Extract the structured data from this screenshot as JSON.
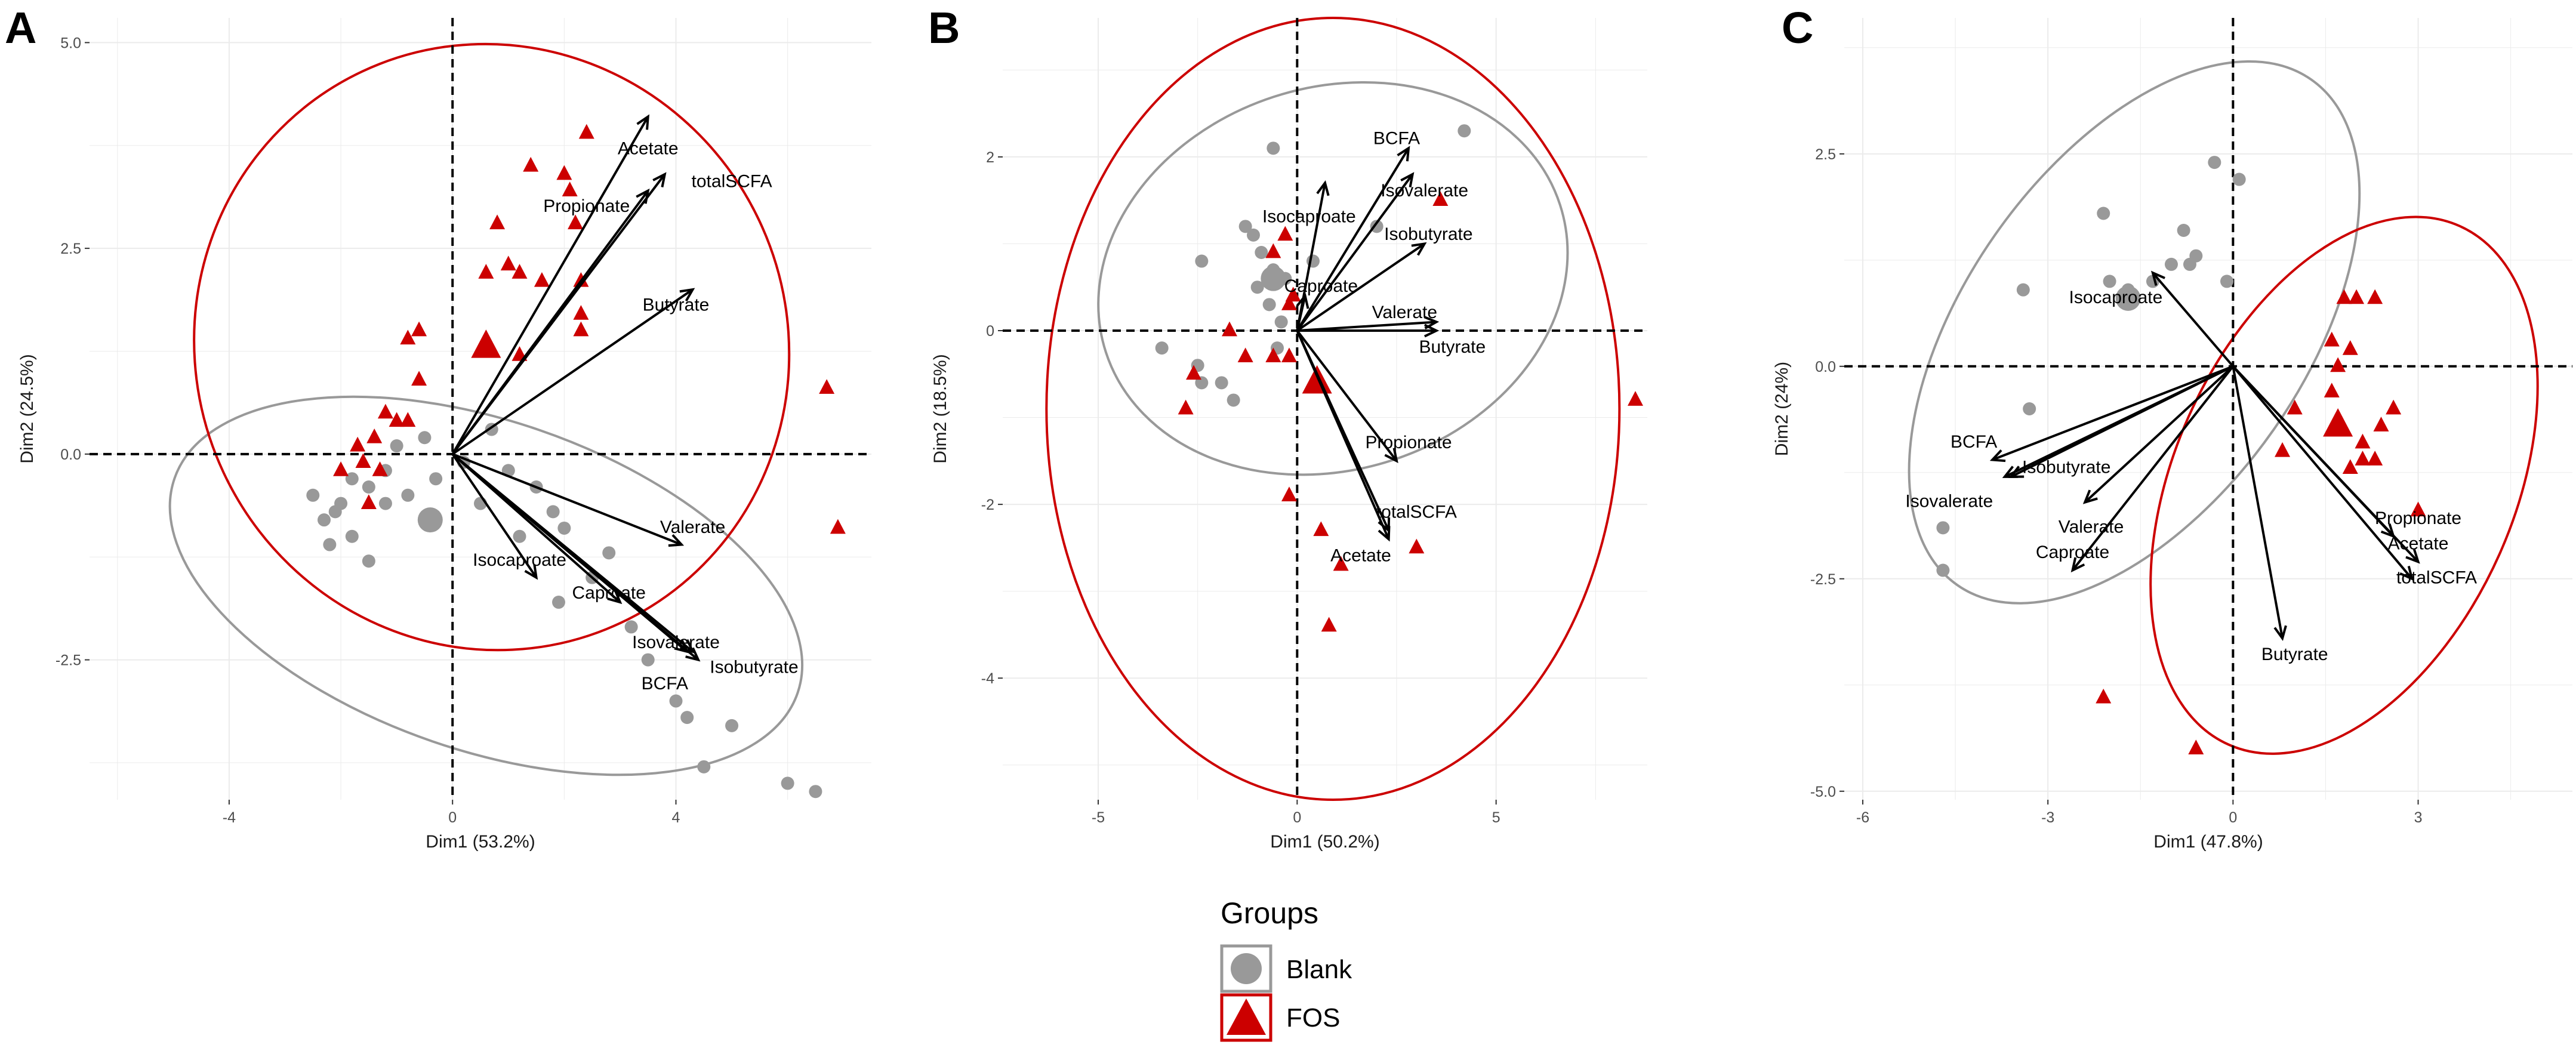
{
  "colors": {
    "blank": "#999999",
    "fos": "#cc0000",
    "grid": "#ebebeb",
    "arrow": "#000000"
  },
  "legend": {
    "title": "Groups",
    "items": [
      {
        "label": "Blank",
        "shape": "circle"
      },
      {
        "label": "FOS",
        "shape": "triangle"
      }
    ]
  },
  "chart_data": [
    {
      "type": "scatter",
      "panel": "A",
      "xlabel": "Dim1 (53.2%)",
      "ylabel": "Dim2 (24.5%)",
      "xlim": [
        -6.5,
        7.5
      ],
      "ylim": [
        -4.2,
        5.3
      ],
      "xticks": [
        -4,
        0,
        4
      ],
      "yticks": [
        -2.5,
        0.0,
        2.5,
        5.0
      ],
      "xtick_labels": [
        "-4",
        "0",
        "4"
      ],
      "ytick_labels": [
        "-2.5",
        "0.0",
        "2.5",
        "5.0"
      ],
      "ellipses": [
        {
          "group": "Blank",
          "cx": 0.6,
          "cy": -1.6,
          "rx": 5.9,
          "ry": 2.0,
          "angle": -19
        },
        {
          "group": "FOS",
          "cx": 0.7,
          "cy": 1.3,
          "rx": 5.3,
          "ry": 3.7,
          "angle": 25
        }
      ],
      "vectors": [
        {
          "name": "Acetate",
          "x": 3.5,
          "y": 4.1,
          "lx": 3.5,
          "ly": 3.7
        },
        {
          "name": "totalSCFA",
          "x": 3.8,
          "y": 3.4,
          "lx": 5.0,
          "ly": 3.3
        },
        {
          "name": "Propionate",
          "x": 3.5,
          "y": 3.2,
          "lx": 2.4,
          "ly": 3.0
        },
        {
          "name": "Butyrate",
          "x": 4.3,
          "y": 2.0,
          "lx": 4.0,
          "ly": 1.8
        },
        {
          "name": "Valerate",
          "x": 4.1,
          "y": -1.1,
          "lx": 4.3,
          "ly": -0.9
        },
        {
          "name": "Isocaproate",
          "x": 1.5,
          "y": -1.5,
          "lx": 1.2,
          "ly": -1.3
        },
        {
          "name": "Caproate",
          "x": 3.0,
          "y": -1.8,
          "lx": 2.8,
          "ly": -1.7
        },
        {
          "name": "Isovalerate",
          "x": 4.3,
          "y": -2.4,
          "lx": 4.0,
          "ly": -2.3
        },
        {
          "name": "Isobutyrate",
          "x": 4.4,
          "y": -2.5,
          "lx": 5.4,
          "ly": -2.6
        },
        {
          "name": "BCFA",
          "x": 4.2,
          "y": -2.4,
          "lx": 3.8,
          "ly": -2.8
        }
      ],
      "blank_points": [
        [
          -2.5,
          -0.5
        ],
        [
          -2.3,
          -0.8
        ],
        [
          -2.0,
          -0.6
        ],
        [
          -1.8,
          -0.3
        ],
        [
          -1.5,
          -0.4
        ],
        [
          -1.2,
          -0.2
        ],
        [
          -1.0,
          0.1
        ],
        [
          -0.8,
          -0.5
        ],
        [
          -0.5,
          0.2
        ],
        [
          -0.3,
          -0.3
        ],
        [
          0.2,
          -0.1
        ],
        [
          0.7,
          0.3
        ],
        [
          1.0,
          -0.2
        ],
        [
          1.5,
          -0.4
        ],
        [
          1.8,
          -0.7
        ],
        [
          2.0,
          -0.9
        ],
        [
          1.9,
          -1.8
        ],
        [
          2.5,
          -1.5
        ],
        [
          2.8,
          -1.2
        ],
        [
          3.2,
          -2.1
        ],
        [
          3.5,
          -2.5
        ],
        [
          4.0,
          -3.0
        ],
        [
          4.2,
          -3.2
        ],
        [
          4.5,
          -3.8
        ],
        [
          5.0,
          -3.3
        ],
        [
          6.0,
          -4.0
        ],
        [
          6.5,
          -4.1
        ],
        [
          -1.5,
          -1.3
        ],
        [
          -1.8,
          -1.0
        ],
        [
          -2.2,
          -1.1
        ],
        [
          -1.2,
          -0.6
        ],
        [
          0.5,
          -0.6
        ],
        [
          1.2,
          -1.0
        ],
        [
          -2.1,
          -0.7
        ]
      ],
      "blank_centroid": [
        -0.4,
        -0.8
      ],
      "fos_points": [
        [
          2.4,
          3.9
        ],
        [
          1.4,
          3.5
        ],
        [
          2.0,
          3.4
        ],
        [
          2.1,
          3.2
        ],
        [
          2.2,
          2.8
        ],
        [
          0.8,
          2.8
        ],
        [
          1.0,
          2.3
        ],
        [
          1.2,
          2.2
        ],
        [
          0.6,
          2.2
        ],
        [
          1.6,
          2.1
        ],
        [
          2.3,
          2.1
        ],
        [
          2.3,
          1.7
        ],
        [
          2.3,
          1.5
        ],
        [
          -0.8,
          1.4
        ],
        [
          -0.6,
          1.5
        ],
        [
          1.2,
          1.2
        ],
        [
          -0.6,
          0.9
        ],
        [
          -1.2,
          0.5
        ],
        [
          -1.0,
          0.4
        ],
        [
          -0.8,
          0.4
        ],
        [
          -1.4,
          0.2
        ],
        [
          -1.7,
          0.1
        ],
        [
          -1.6,
          -0.1
        ],
        [
          -1.3,
          -0.2
        ],
        [
          -2.0,
          -0.2
        ],
        [
          -1.5,
          -0.6
        ],
        [
          6.7,
          0.8
        ],
        [
          6.9,
          -0.9
        ]
      ],
      "fos_centroid": [
        0.6,
        1.3
      ]
    },
    {
      "type": "scatter",
      "panel": "B",
      "xlabel": "Dim1 (50.2%)",
      "ylabel": "Dim2 (18.5%)",
      "xlim": [
        -7.4,
        8.8
      ],
      "ylim": [
        -5.4,
        3.6
      ],
      "xticks": [
        -5,
        0,
        5
      ],
      "yticks": [
        -4,
        -2,
        0,
        2
      ],
      "xtick_labels": [
        "-5",
        "0",
        "5"
      ],
      "ytick_labels": [
        "-4",
        "-2",
        "0",
        "2"
      ],
      "ellipses": [
        {
          "group": "Blank",
          "cx": 0.9,
          "cy": 0.6,
          "rx": 6.0,
          "ry": 2.2,
          "angle": 18
        },
        {
          "group": "FOS",
          "cx": 0.9,
          "cy": -0.9,
          "rx": 7.2,
          "ry": 4.5,
          "angle": 0
        }
      ],
      "vectors": [
        {
          "name": "BCFA",
          "x": 2.8,
          "y": 2.1,
          "lx": 2.5,
          "ly": 2.2
        },
        {
          "name": "Isovalerate",
          "x": 2.9,
          "y": 1.8,
          "lx": 3.2,
          "ly": 1.6
        },
        {
          "name": "Isocaproate",
          "x": 0.7,
          "y": 1.7,
          "lx": 0.3,
          "ly": 1.3
        },
        {
          "name": "Isobutyrate",
          "x": 3.2,
          "y": 1.0,
          "lx": 3.3,
          "ly": 1.1
        },
        {
          "name": "Caproate",
          "x": 0.2,
          "y": 0.4,
          "lx": 0.6,
          "ly": 0.5
        },
        {
          "name": "Valerate",
          "x": 3.5,
          "y": 0.1,
          "lx": 2.7,
          "ly": 0.2
        },
        {
          "name": "Butyrate",
          "x": 3.5,
          "y": 0.0,
          "lx": 3.9,
          "ly": -0.2
        },
        {
          "name": "Propionate",
          "x": 2.5,
          "y": -1.5,
          "lx": 2.8,
          "ly": -1.3
        },
        {
          "name": "totalSCFA",
          "x": 2.3,
          "y": -2.3,
          "lx": 3.0,
          "ly": -2.1
        },
        {
          "name": "Acetate",
          "x": 2.3,
          "y": -2.4,
          "lx": 1.6,
          "ly": -2.6
        }
      ],
      "blank_points": [
        [
          -0.6,
          2.1
        ],
        [
          -2.4,
          0.8
        ],
        [
          -1.3,
          1.2
        ],
        [
          -1.1,
          1.1
        ],
        [
          -0.9,
          0.9
        ],
        [
          -0.6,
          0.7
        ],
        [
          -1.0,
          0.5
        ],
        [
          -0.7,
          0.3
        ],
        [
          -0.4,
          0.1
        ],
        [
          -3.4,
          -0.2
        ],
        [
          -2.5,
          -0.4
        ],
        [
          -2.4,
          -0.6
        ],
        [
          -1.9,
          -0.6
        ],
        [
          -1.6,
          -0.8
        ],
        [
          -0.5,
          -0.2
        ],
        [
          0.4,
          0.8
        ],
        [
          2.0,
          1.2
        ],
        [
          4.2,
          2.3
        ],
        [
          -0.3,
          0.6
        ]
      ],
      "blank_centroid": [
        -0.6,
        0.6
      ],
      "fos_points": [
        [
          -0.3,
          1.1
        ],
        [
          -0.6,
          0.9
        ],
        [
          -0.1,
          0.4
        ],
        [
          -0.2,
          0.3
        ],
        [
          -1.7,
          0.0
        ],
        [
          -0.2,
          -0.3
        ],
        [
          -0.6,
          -0.3
        ],
        [
          -1.3,
          -0.3
        ],
        [
          -2.6,
          -0.5
        ],
        [
          -2.8,
          -0.9
        ],
        [
          3.6,
          1.5
        ],
        [
          -0.2,
          -1.9
        ],
        [
          0.6,
          -2.3
        ],
        [
          1.1,
          -2.7
        ],
        [
          0.8,
          -3.4
        ],
        [
          3.0,
          -2.5
        ],
        [
          8.5,
          -0.8
        ]
      ],
      "fos_centroid": [
        0.5,
        -0.6
      ]
    },
    {
      "type": "scatter",
      "panel": "C",
      "xlabel": "Dim1 (47.8%)",
      "ylabel": "Dim2 (24%)",
      "xlim": [
        -6.3,
        5.5
      ],
      "ylim": [
        -5.1,
        4.1
      ],
      "xticks": [
        -6,
        -3,
        0,
        3
      ],
      "yticks": [
        -5.0,
        -2.5,
        0.0,
        2.5
      ],
      "xtick_labels": [
        "-6",
        "-3",
        "0",
        "3"
      ],
      "ytick_labels": [
        "-5.0",
        "-2.5",
        "0.0",
        "2.5"
      ],
      "ellipses": [
        {
          "group": "Blank",
          "cx": -1.6,
          "cy": 0.4,
          "rx": 5.0,
          "ry": 2.0,
          "angle": 55
        },
        {
          "group": "FOS",
          "cx": 1.8,
          "cy": -1.4,
          "rx": 4.6,
          "ry": 2.0,
          "angle": 66
        }
      ],
      "vectors": [
        {
          "name": "Isocaproate",
          "x": -1.3,
          "y": 1.1,
          "lx": -1.9,
          "ly": 0.8
        },
        {
          "name": "BCFA",
          "x": -3.9,
          "y": -1.1,
          "lx": -4.2,
          "ly": -0.9
        },
        {
          "name": "Isobutyrate",
          "x": -3.7,
          "y": -1.3,
          "lx": -2.7,
          "ly": -1.2
        },
        {
          "name": "Isovalerate",
          "x": -3.6,
          "y": -1.3,
          "lx": -4.6,
          "ly": -1.6
        },
        {
          "name": "Valerate",
          "x": -2.4,
          "y": -1.6,
          "lx": -2.3,
          "ly": -1.9
        },
        {
          "name": "Caproate",
          "x": -2.6,
          "y": -2.4,
          "lx": -2.6,
          "ly": -2.2
        },
        {
          "name": "Propionate",
          "x": 2.6,
          "y": -2.0,
          "lx": 3.0,
          "ly": -1.8
        },
        {
          "name": "Acetate",
          "x": 3.0,
          "y": -2.3,
          "lx": 3.0,
          "ly": -2.1
        },
        {
          "name": "totalSCFA",
          "x": 2.9,
          "y": -2.5,
          "lx": 3.3,
          "ly": -2.5
        },
        {
          "name": "Butyrate",
          "x": 0.8,
          "y": -3.2,
          "lx": 1.0,
          "ly": -3.4
        }
      ],
      "blank_points": [
        [
          -0.3,
          2.4
        ],
        [
          0.1,
          2.2
        ],
        [
          -2.1,
          1.8
        ],
        [
          -0.8,
          1.6
        ],
        [
          -0.6,
          1.3
        ],
        [
          -0.7,
          1.2
        ],
        [
          -1.0,
          1.2
        ],
        [
          -1.3,
          1.0
        ],
        [
          -2.0,
          1.0
        ],
        [
          -3.4,
          0.9
        ],
        [
          -0.1,
          1.0
        ],
        [
          -3.3,
          -0.5
        ],
        [
          -4.7,
          -1.9
        ],
        [
          -4.7,
          -2.4
        ],
        [
          -1.7,
          0.9
        ]
      ],
      "blank_centroid": [
        -1.7,
        0.8
      ],
      "fos_points": [
        [
          1.8,
          0.8
        ],
        [
          2.0,
          0.8
        ],
        [
          2.3,
          0.8
        ],
        [
          1.6,
          0.3
        ],
        [
          1.9,
          0.2
        ],
        [
          1.7,
          0.0
        ],
        [
          1.6,
          -0.3
        ],
        [
          1.0,
          -0.5
        ],
        [
          2.6,
          -0.5
        ],
        [
          2.4,
          -0.7
        ],
        [
          2.1,
          -0.9
        ],
        [
          2.3,
          -1.1
        ],
        [
          2.1,
          -1.1
        ],
        [
          0.8,
          -1.0
        ],
        [
          1.9,
          -1.2
        ],
        [
          3.0,
          -1.7
        ],
        [
          -2.1,
          -3.9
        ],
        [
          -0.6,
          -4.5
        ]
      ],
      "fos_centroid": [
        1.7,
        -0.7
      ]
    }
  ]
}
